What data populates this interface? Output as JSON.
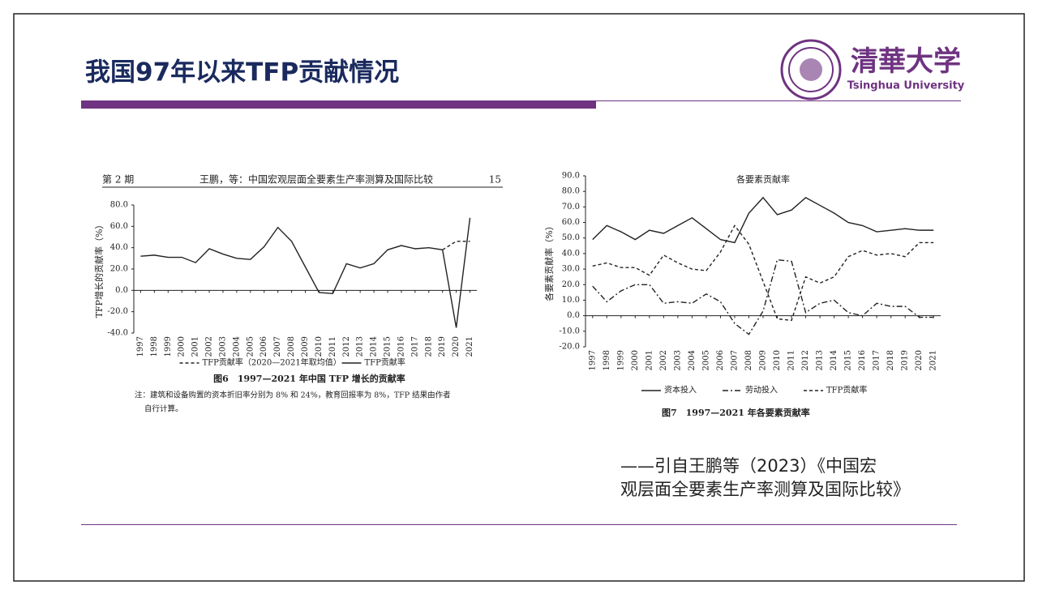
{
  "slide": {
    "title": "我国97年以来TFP贡献情况",
    "logo_cn": "清華大学",
    "logo_en": "Tsinghua University",
    "quote_lines": [
      "——引自王鹏等（2023）《中国宏",
      "观层面全要素生产率测算及国际比较》"
    ]
  },
  "chart_data": [
    {
      "type": "line",
      "page_header": [
        "第 2 期",
        "王鹏，等：中国宏观层面全要素生产率测算及国际比较",
        "15"
      ],
      "ylabel": "TFP增长的贡献率（%）",
      "caption": "图6　1997—2021 年中国 TFP 增长的贡献率",
      "note_lines": [
        "注：建筑和设备购置的资本折旧率分别为 8% 和 24%，教育回报率为 8%，TFP 结果由作者",
        "自行计算。"
      ],
      "categories": [
        "1997",
        "1998",
        "1999",
        "2000",
        "2001",
        "2002",
        "2003",
        "2004",
        "2005",
        "2006",
        "2007",
        "2008",
        "2009",
        "2010",
        "2011",
        "2012",
        "2013",
        "2014",
        "2015",
        "2016",
        "2017",
        "2018",
        "2019",
        "2020",
        "2021"
      ],
      "series": [
        {
          "name": "TFP贡献率（2020—2021年取均值）",
          "color": "#222",
          "style": "dashed",
          "values": [
            null,
            null,
            null,
            null,
            null,
            null,
            null,
            null,
            null,
            null,
            null,
            null,
            null,
            null,
            null,
            null,
            null,
            null,
            null,
            null,
            null,
            null,
            38,
            46,
            46
          ]
        },
        {
          "name": "TFP贡献率",
          "color": "#222",
          "style": "solid",
          "values": [
            32,
            33,
            31,
            31,
            26,
            39,
            34,
            30,
            29,
            41,
            59,
            46,
            22,
            -2,
            -3,
            25,
            21,
            25,
            38,
            42,
            39,
            40,
            38,
            -35,
            68
          ]
        }
      ],
      "ylim": [
        -40,
        80
      ],
      "yticks": [
        {
          "value": -40,
          "label": "-40.0"
        },
        {
          "value": -20,
          "label": "-20.0"
        },
        {
          "value": 0,
          "label": "0.0"
        },
        {
          "value": 20,
          "label": "20.0"
        },
        {
          "value": 40,
          "label": "40.0"
        },
        {
          "value": 60,
          "label": "60.0"
        },
        {
          "value": 80,
          "label": "80.0"
        }
      ],
      "grid": false
    },
    {
      "type": "line",
      "title": "各要素贡献率",
      "ylabel": "各要素贡献率（%）",
      "caption": "图7　1997—2021 年各要素贡献率",
      "categories": [
        "1997",
        "1998",
        "1999",
        "2000",
        "2001",
        "2002",
        "2003",
        "2004",
        "2005",
        "2006",
        "2007",
        "2008",
        "2009",
        "2010",
        "2011",
        "2012",
        "2013",
        "2014",
        "2015",
        "2016",
        "2017",
        "2018",
        "2019",
        "2020",
        "2021"
      ],
      "series": [
        {
          "name": "资本投入",
          "color": "#222",
          "style": "solid",
          "values": [
            49,
            58,
            54,
            49,
            55,
            53,
            58,
            63,
            56,
            49,
            47,
            66,
            76,
            65,
            68,
            76,
            71,
            66,
            60,
            58,
            54,
            55,
            56,
            55,
            55
          ]
        },
        {
          "name": "劳动投入",
          "color": "#222",
          "style": "dashdot",
          "values": [
            19,
            9,
            16,
            20,
            20,
            8,
            9,
            8,
            14,
            9,
            -5,
            -12,
            3,
            36,
            35,
            2,
            8,
            10,
            2,
            0,
            8,
            6,
            6,
            -1,
            -1
          ]
        },
        {
          "name": "TFP贡献率",
          "color": "#222",
          "style": "dashed",
          "values": [
            32,
            34,
            31,
            31,
            26,
            39,
            34,
            30,
            29,
            41,
            58,
            46,
            22,
            -2,
            -3,
            25,
            21,
            25,
            38,
            42,
            39,
            40,
            38,
            47,
            47
          ]
        }
      ],
      "ylim": [
        -20,
        90
      ],
      "yticks": [
        {
          "value": -20,
          "label": "-20.0"
        },
        {
          "value": -10,
          "label": "-10.0"
        },
        {
          "value": 0,
          "label": "0.0"
        },
        {
          "value": 10,
          "label": "10.0"
        },
        {
          "value": 20,
          "label": "20.0"
        },
        {
          "value": 30,
          "label": "30.0"
        },
        {
          "value": 40,
          "label": "40.0"
        },
        {
          "value": 50,
          "label": "50.0"
        },
        {
          "value": 60,
          "label": "60.0"
        },
        {
          "value": 70,
          "label": "70.0"
        },
        {
          "value": 80,
          "label": "80.0"
        },
        {
          "value": 90,
          "label": "90.0"
        }
      ],
      "grid": false
    }
  ]
}
